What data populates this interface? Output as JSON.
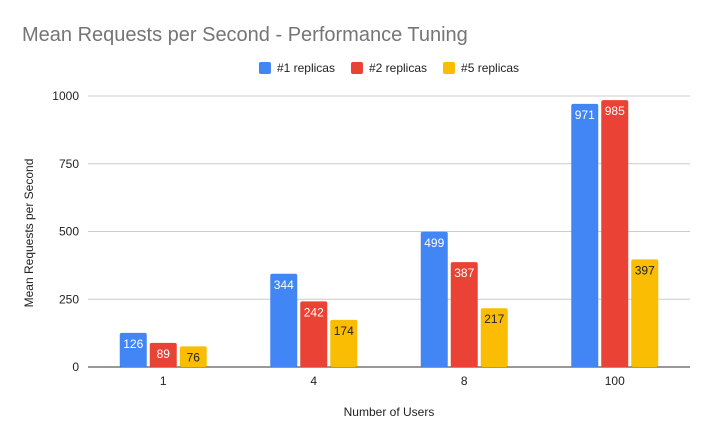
{
  "chart_data": {
    "type": "bar",
    "title": "Mean Requests per Second - Performance Tuning",
    "xlabel": "Number of Users",
    "ylabel": "Mean Requests per Second",
    "categories": [
      "1",
      "4",
      "8",
      "100"
    ],
    "series": [
      {
        "name": "#1 replicas",
        "color": "#4285F4",
        "label_color": "#ffffff",
        "values": [
          126,
          344,
          499,
          971
        ]
      },
      {
        "name": "#2 replicas",
        "color": "#EA4335",
        "label_color": "#ffffff",
        "values": [
          89,
          242,
          387,
          985
        ]
      },
      {
        "name": "#5 replicas",
        "color": "#FBBC04",
        "label_color": "#222222",
        "values": [
          76,
          174,
          217,
          397
        ]
      }
    ],
    "ylim": [
      0,
      1000
    ],
    "yticks": [
      0,
      250,
      500,
      750,
      1000
    ],
    "grid": true,
    "legend_position": "top-center"
  }
}
